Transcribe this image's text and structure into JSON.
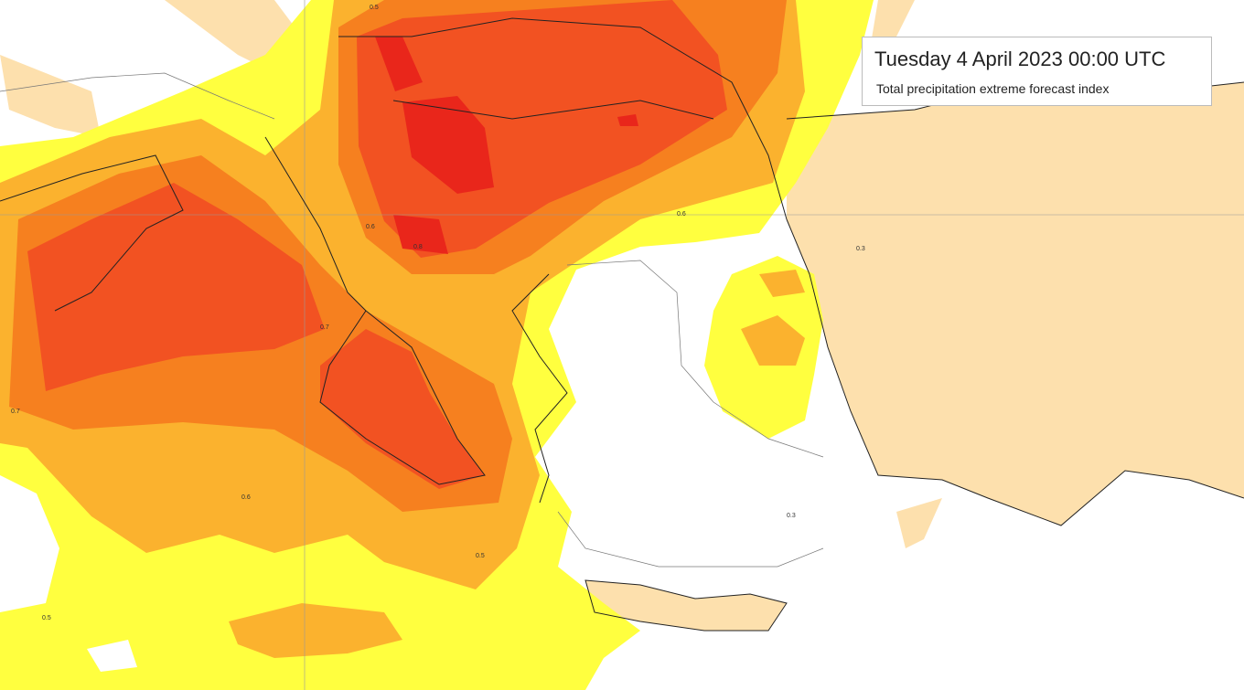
{
  "header": {
    "title": "Tuesday 4 April 2023 00:00 UTC",
    "subtitle": "Total precipitation extreme forecast index"
  },
  "contour_labels": [
    "0.5",
    "0.6",
    "0.7",
    "0.8",
    "0.5",
    "0.6",
    "0.7",
    "0.5",
    "0.6",
    "0.3",
    "0.3"
  ]
}
